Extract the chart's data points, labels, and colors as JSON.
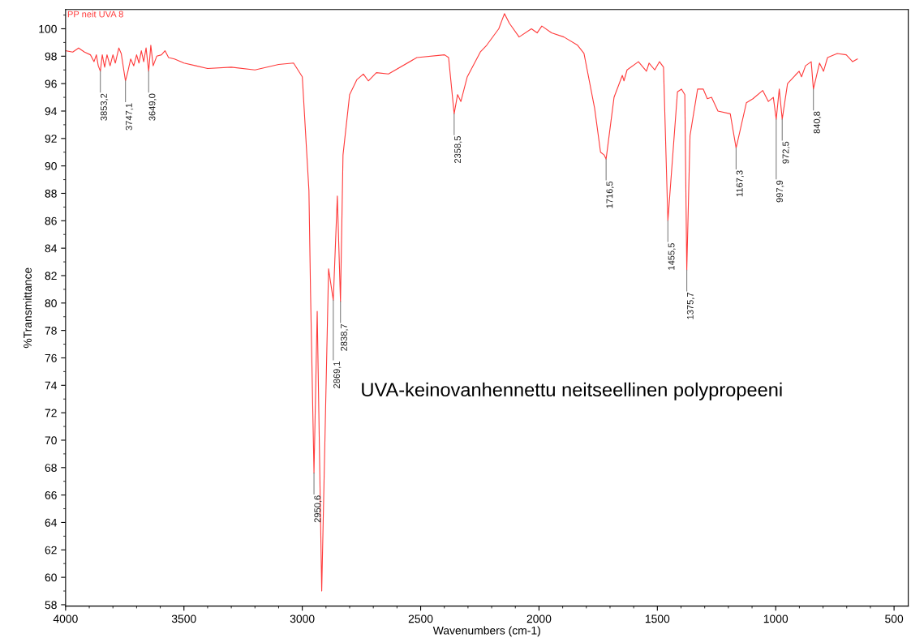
{
  "chart_data": {
    "type": "line",
    "xlabel": "Wavenumbers (cm-1)",
    "ylabel": "%Transmittance",
    "xlim": [
      4000,
      440
    ],
    "xticks": [
      4000,
      3500,
      3000,
      2500,
      2000,
      1500,
      1000,
      500
    ],
    "ylim": [
      57.9,
      101.4
    ],
    "yticks": [
      58,
      60,
      62,
      64,
      66,
      68,
      70,
      72,
      74,
      76,
      78,
      80,
      82,
      84,
      86,
      88,
      90,
      92,
      94,
      96,
      98,
      100
    ],
    "grid": false,
    "legend": false,
    "series": [
      {
        "name": "PP neit UVA 8",
        "color": "#ff3b3b",
        "x": [
          4000,
          3970,
          3945,
          3920,
          3895,
          3880,
          3870,
          3862,
          3853.2,
          3845,
          3835,
          3825,
          3812,
          3800,
          3790,
          3775,
          3765,
          3747.1,
          3738,
          3725,
          3712,
          3700,
          3690,
          3680,
          3670,
          3660,
          3649.0,
          3640,
          3630,
          3615,
          3595,
          3580,
          3565,
          3540,
          3500,
          3450,
          3400,
          3300,
          3200,
          3100,
          3037,
          3000,
          2972,
          2965,
          2950.6,
          2937,
          2918,
          2889,
          2869.1,
          2852,
          2838.7,
          2828,
          2800,
          2769,
          2742,
          2721,
          2687,
          2636,
          2516,
          2399,
          2382,
          2358.5,
          2344,
          2330,
          2303,
          2248,
          2221,
          2170,
          2146,
          2125,
          2084,
          2032,
          2008,
          1988,
          1947,
          1895,
          1837,
          1810,
          1765,
          1740,
          1725,
          1716.5,
          1683,
          1648,
          1641,
          1628,
          1580,
          1546,
          1535,
          1511,
          1491,
          1474,
          1455.5,
          1415,
          1398,
          1384,
          1375.7,
          1362,
          1330,
          1306,
          1289,
          1271,
          1244,
          1192,
          1167.3,
          1124,
          1096,
          1055,
          1031,
          1010,
          997.9,
          985,
          972.5,
          950,
          918,
          901,
          891,
          874,
          850,
          840.8,
          815,
          798,
          781,
          740,
          702,
          675,
          655
        ],
        "values": [
          98.4,
          98.3,
          98.6,
          98.3,
          98.1,
          97.6,
          98.1,
          97.3,
          96.9,
          98.1,
          97.2,
          98.1,
          97.3,
          98.1,
          97.5,
          98.6,
          98.2,
          96.2,
          96.8,
          97.8,
          97.3,
          98.1,
          97.5,
          98.4,
          97.6,
          98.6,
          96.9,
          98.8,
          97.3,
          98.0,
          98.1,
          98.4,
          97.9,
          97.8,
          97.5,
          97.3,
          97.1,
          97.2,
          97.0,
          97.4,
          97.5,
          96.5,
          88.2,
          80.6,
          67.6,
          79.4,
          59.0,
          82.5,
          80.2,
          87.8,
          80.1,
          90.8,
          95.2,
          96.3,
          96.7,
          96.2,
          96.8,
          96.7,
          97.9,
          98.1,
          97.9,
          93.8,
          95.2,
          94.7,
          96.5,
          98.3,
          98.8,
          100.0,
          101.1,
          100.4,
          99.4,
          100.0,
          99.7,
          100.2,
          99.7,
          99.4,
          98.8,
          98.2,
          94.2,
          91.0,
          90.8,
          90.5,
          95.0,
          96.6,
          96.2,
          97.0,
          97.6,
          96.9,
          97.5,
          97.0,
          97.6,
          97.2,
          86.0,
          95.4,
          95.6,
          95.2,
          82.4,
          92.2,
          95.6,
          95.6,
          94.9,
          95.0,
          94.0,
          93.8,
          91.3,
          94.6,
          94.9,
          95.5,
          94.7,
          95.0,
          93.4,
          95.6,
          93.4,
          96.0,
          96.6,
          96.9,
          96.5,
          97.3,
          97.6,
          95.6,
          97.5,
          96.9,
          97.9,
          98.2,
          98.1,
          97.6,
          97.8
        ]
      }
    ],
    "annotations": [
      {
        "text": "3853,2",
        "x": 3853.2,
        "y": 96.9
      },
      {
        "text": "3747,1",
        "x": 3747.1,
        "y": 96.2
      },
      {
        "text": "3649,0",
        "x": 3649.0,
        "y": 96.9
      },
      {
        "text": "2950,6",
        "x": 2950.6,
        "y": 67.6
      },
      {
        "text": "2869,1",
        "x": 2869.1,
        "y": 80.2
      },
      {
        "text": "2838,7",
        "x": 2838.7,
        "y": 80.1
      },
      {
        "text": "2358,5",
        "x": 2358.5,
        "y": 93.8
      },
      {
        "text": "1716,5",
        "x": 1716.5,
        "y": 90.5
      },
      {
        "text": "1455,5",
        "x": 1455.5,
        "y": 86.0
      },
      {
        "text": "1375,7",
        "x": 1375.7,
        "y": 82.4
      },
      {
        "text": "1167,3",
        "x": 1167.3,
        "y": 91.3
      },
      {
        "text": "997,9",
        "x": 997.9,
        "y": 93.4
      },
      {
        "text": "972,5",
        "x": 972.5,
        "y": 93.4
      },
      {
        "text": "840,8",
        "x": 840.8,
        "y": 95.6
      },
      "UVA-keinovanhennettu neitseellinen polypropeeni"
    ]
  }
}
